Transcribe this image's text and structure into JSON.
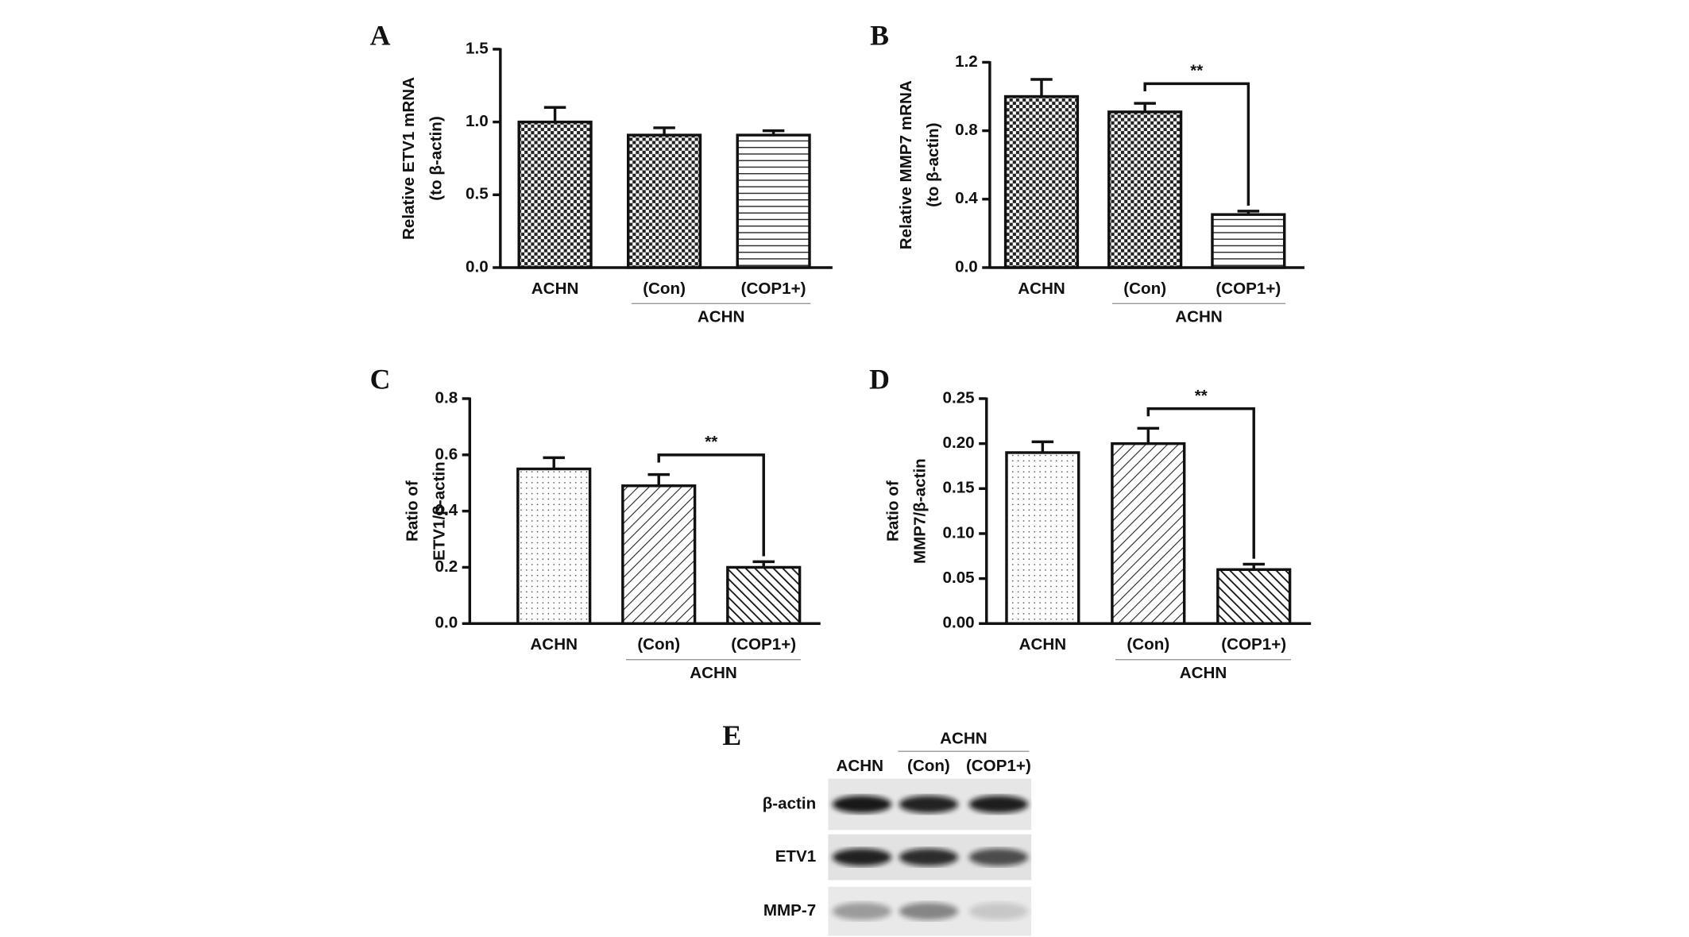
{
  "chart_data": [
    {
      "type": "bar",
      "panel": "A",
      "ylabel": [
        "Relative ETV1 mRNA",
        "(to β-actin)"
      ],
      "categories": [
        "ACHN",
        "(Con)",
        "(COP1+)"
      ],
      "values": [
        1.0,
        0.91,
        0.91
      ],
      "errors": [
        0.1,
        0.05,
        0.03
      ],
      "patterns": [
        "checker",
        "checker",
        "hlines"
      ],
      "ylim": [
        0,
        1.5
      ],
      "yticks": [
        {
          "value": 0,
          "label": "0.0"
        },
        0.5,
        {
          "value": 1,
          "label": "1.0"
        },
        1.5
      ],
      "group_label": "ACHN",
      "group_span": [
        "(Con)",
        "(COP1+)"
      ]
    },
    {
      "type": "bar",
      "panel": "B",
      "ylabel": [
        "Relative MMP7 mRNA",
        "(to β-actin)"
      ],
      "categories": [
        "ACHN",
        "(Con)",
        "(COP1+)"
      ],
      "values": [
        1.0,
        0.91,
        0.31
      ],
      "errors": [
        0.1,
        0.05,
        0.02
      ],
      "patterns": [
        "checker",
        "checker",
        "hlines"
      ],
      "ylim": [
        0,
        1.2
      ],
      "yticks": [
        {
          "value": 0,
          "label": "0.0"
        },
        0.4,
        0.8,
        1.2
      ],
      "group_label": "ACHN",
      "group_span": [
        "(Con)",
        "(COP1+)"
      ],
      "annotations": [
        {
          "text": "**",
          "between": [
            "(Con)",
            "(COP1+)"
          ]
        }
      ]
    },
    {
      "type": "bar",
      "panel": "C",
      "ylabel": [
        "Ratio of",
        "ETV1/β-actin"
      ],
      "categories": [
        "ACHN",
        "(Con)",
        "(COP1+)"
      ],
      "values": [
        0.55,
        0.49,
        0.2
      ],
      "errors": [
        0.04,
        0.04,
        0.02
      ],
      "patterns": [
        "dots",
        "diag",
        "diag2"
      ],
      "ylim": [
        0,
        0.8
      ],
      "yticks": [
        {
          "value": 0,
          "label": "0.0"
        },
        0.2,
        0.4,
        0.6,
        0.8
      ],
      "group_label": "ACHN",
      "group_span": [
        "(Con)",
        "(COP1+)"
      ],
      "annotations": [
        {
          "text": "**",
          "between": [
            "(Con)",
            "(COP1+)"
          ]
        }
      ]
    },
    {
      "type": "bar",
      "panel": "D",
      "ylabel": [
        "Ratio of",
        "MMP7/β-actin"
      ],
      "categories": [
        "ACHN",
        "(Con)",
        "(COP1+)"
      ],
      "values": [
        0.19,
        0.2,
        0.06
      ],
      "errors": [
        0.012,
        0.017,
        0.006
      ],
      "patterns": [
        "dots",
        "diag",
        "diag2"
      ],
      "ylim": [
        0,
        0.25
      ],
      "yticks": [
        {
          "value": 0,
          "label": "0.00"
        },
        0.05,
        {
          "value": 0.1,
          "label": "0.10"
        },
        0.15,
        {
          "value": 0.2,
          "label": "0.20"
        },
        0.25
      ],
      "group_label": "ACHN",
      "group_span": [
        "(Con)",
        "(COP1+)"
      ],
      "annotations": [
        {
          "text": "**",
          "between": [
            "(Con)",
            "(COP1+)"
          ]
        }
      ]
    }
  ],
  "gel": {
    "panel": "E",
    "group_label": "ACHN",
    "lanes": [
      "ACHN",
      "(Con)",
      "(COP1+)"
    ],
    "rows": [
      "β-actin",
      "ETV1",
      "MMP-7"
    ]
  }
}
